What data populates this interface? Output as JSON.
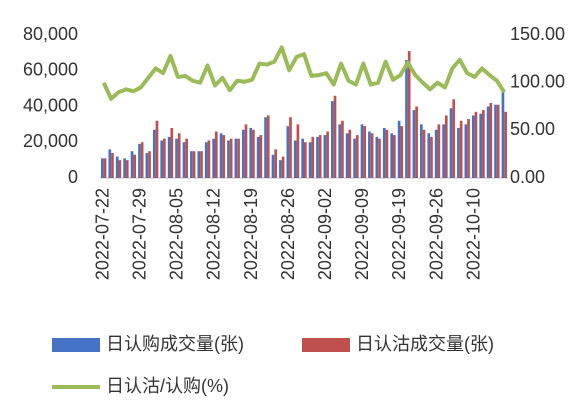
{
  "chart_data": {
    "type": "bar",
    "categories": [
      "2022-07-22",
      null,
      null,
      null,
      null,
      "2022-07-29",
      null,
      null,
      null,
      null,
      "2022-08-05",
      null,
      null,
      null,
      null,
      "2022-08-12",
      null,
      null,
      null,
      null,
      "2022-08-19",
      null,
      null,
      null,
      null,
      "2022-08-26",
      null,
      null,
      null,
      null,
      "2022-09-02",
      null,
      null,
      null,
      null,
      "2022-09-09",
      null,
      null,
      null,
      null,
      "2022-09-19",
      null,
      null,
      null,
      null,
      "2022-09-26",
      null,
      null,
      null,
      null,
      "2022-10-10",
      null,
      null,
      null,
      null
    ],
    "series": [
      {
        "name": "日认购成交量(张)",
        "color": "#4472c4",
        "type": "bar",
        "values": [
          11000,
          16000,
          12000,
          11000,
          15000,
          19000,
          14000,
          27000,
          21000,
          23000,
          22000,
          20000,
          15000,
          15000,
          20000,
          22000,
          25000,
          21000,
          22000,
          27000,
          28000,
          23000,
          34000,
          13000,
          10000,
          29000,
          21000,
          22000,
          20000,
          23000,
          24000,
          43000,
          30000,
          25000,
          22000,
          30000,
          26000,
          23000,
          28000,
          25000,
          32000,
          66000,
          38000,
          30000,
          25000,
          27000,
          30000,
          39000,
          28000,
          30000,
          35000,
          36000,
          40000,
          41000,
          50000
        ]
      },
      {
        "name": "日认沽成交量(张)",
        "color": "#c0504d",
        "type": "bar",
        "values": [
          11000,
          14000,
          10000,
          10000,
          13000,
          20000,
          15000,
          32000,
          22000,
          28000,
          25000,
          22000,
          15000,
          15000,
          21000,
          26000,
          24000,
          22000,
          22000,
          30000,
          27000,
          24000,
          35000,
          16000,
          12000,
          34000,
          30000,
          20000,
          23000,
          24000,
          26000,
          46000,
          32000,
          27000,
          24000,
          29000,
          25000,
          22000,
          27000,
          24000,
          29000,
          71000,
          40000,
          27000,
          23000,
          30000,
          35000,
          44000,
          32000,
          33000,
          37000,
          38000,
          42000,
          41000,
          37000
        ]
      },
      {
        "name": "日认沽/认购(%)",
        "color": "#9bbb59",
        "type": "line",
        "axis": "y2",
        "values": [
          100,
          83,
          90,
          93,
          91,
          95,
          105,
          115,
          110,
          128,
          106,
          107,
          102,
          100,
          118,
          97,
          105,
          92,
          102,
          101,
          103,
          120,
          119,
          122,
          137,
          113,
          127,
          130,
          107,
          108,
          110,
          98,
          120,
          102,
          98,
          120,
          98,
          100,
          122,
          103,
          108,
          121,
          108,
          100,
          93,
          100,
          95,
          115,
          124,
          110,
          106,
          115,
          108,
          102,
          90
        ]
      }
    ],
    "ylim": [
      0,
      80000
    ],
    "yticks": [
      0,
      {
        "value": 20000,
        "label": "20,000"
      },
      {
        "value": 40000,
        "label": "40,000"
      },
      {
        "value": 60000,
        "label": "60,000"
      },
      {
        "value": 80000,
        "label": "80,000"
      }
    ],
    "y2lim": [
      0,
      150
    ],
    "y2ticks": [
      {
        "value": 0,
        "label": "0.00"
      },
      {
        "value": 50,
        "label": "50.00"
      },
      {
        "value": 100,
        "label": "100.00"
      },
      {
        "value": 150,
        "label": "150.00"
      }
    ],
    "grid": false,
    "legend": "bottom"
  }
}
